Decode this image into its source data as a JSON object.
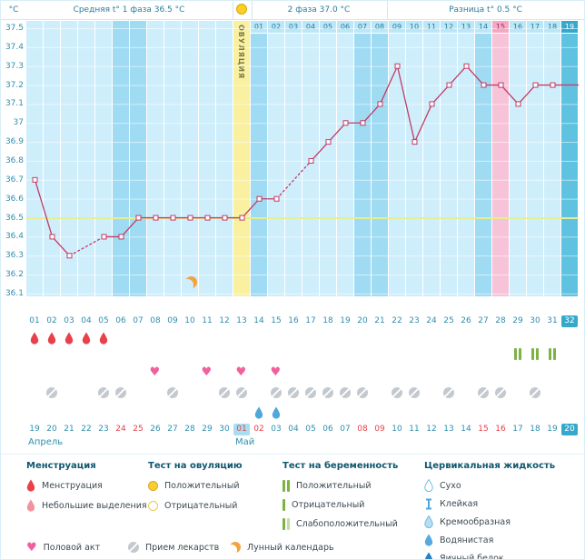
{
  "header": {
    "unit_label": "°C",
    "phase1_label": "Средняя t° 1 фаза 36.5 °C",
    "phase2_label": "2 фаза 37.0 °C",
    "diff_label": "Разница t° 0.5 °C"
  },
  "chart_data": {
    "type": "line",
    "unit": "°C",
    "ylim": [
      36.1,
      37.5
    ],
    "yticks": [
      "37.5",
      "37.4",
      "37.3",
      "37.2",
      "37.1",
      "37",
      "36.9",
      "36.8",
      "36.7",
      "36.6",
      "36.5",
      "36.4",
      "36.3",
      "36.2",
      "36.1"
    ],
    "coverline_temp": 36.5,
    "phase1_avg": 36.5,
    "phase2_avg": 37.0,
    "temp_diff": 0.5,
    "cycle_length_shown": 32,
    "temps_by_day": [
      36.7,
      36.4,
      36.3,
      null,
      36.4,
      36.4,
      36.5,
      36.5,
      36.5,
      36.5,
      36.5,
      36.5,
      36.5,
      36.6,
      36.6,
      null,
      36.8,
      36.9,
      37.0,
      37.0,
      37.1,
      37.3,
      36.9,
      37.1,
      37.2,
      37.3,
      37.2,
      37.2,
      37.1,
      37.2,
      37.2
    ],
    "ovulation": {
      "day": 13,
      "label": "ОВУЛЯЦИЯ"
    },
    "dpo": {
      "start_day": 14,
      "labels": [
        "01",
        "02",
        "03",
        "04",
        "05",
        "06",
        "07",
        "08",
        "09",
        "10",
        "11",
        "12",
        "13",
        "14",
        "15",
        "16",
        "17",
        "18",
        "19"
      ],
      "pink_label": "15",
      "today_label": "19"
    },
    "weekend_days": [
      6,
      7,
      14,
      20,
      21,
      27
    ],
    "pink_day": 28,
    "today_day": 32,
    "lunar_event_day": 10,
    "dates": [
      {
        "label": "19",
        "red": false,
        "badge": null
      },
      {
        "label": "20",
        "red": false,
        "badge": null
      },
      {
        "label": "21",
        "red": false,
        "badge": null
      },
      {
        "label": "22",
        "red": false,
        "badge": null
      },
      {
        "label": "23",
        "red": false,
        "badge": null
      },
      {
        "label": "24",
        "red": true,
        "badge": null
      },
      {
        "label": "25",
        "red": true,
        "badge": null
      },
      {
        "label": "26",
        "red": false,
        "badge": null
      },
      {
        "label": "27",
        "red": false,
        "badge": null
      },
      {
        "label": "28",
        "red": false,
        "badge": null
      },
      {
        "label": "29",
        "red": false,
        "badge": null
      },
      {
        "label": "30",
        "red": false,
        "badge": null
      },
      {
        "label": "01",
        "red": true,
        "badge": "ovu"
      },
      {
        "label": "02",
        "red": true,
        "badge": null
      },
      {
        "label": "03",
        "red": false,
        "badge": null
      },
      {
        "label": "04",
        "red": false,
        "badge": null
      },
      {
        "label": "05",
        "red": false,
        "badge": null
      },
      {
        "label": "06",
        "red": false,
        "badge": null
      },
      {
        "label": "07",
        "red": false,
        "badge": null
      },
      {
        "label": "08",
        "red": true,
        "badge": null
      },
      {
        "label": "09",
        "red": true,
        "badge": null
      },
      {
        "label": "10",
        "red": false,
        "badge": null
      },
      {
        "label": "11",
        "red": false,
        "badge": null
      },
      {
        "label": "12",
        "red": false,
        "badge": null
      },
      {
        "label": "13",
        "red": false,
        "badge": null
      },
      {
        "label": "14",
        "red": false,
        "badge": null
      },
      {
        "label": "15",
        "red": true,
        "badge": null
      },
      {
        "label": "16",
        "red": true,
        "badge": null
      },
      {
        "label": "17",
        "red": false,
        "badge": null
      },
      {
        "label": "18",
        "red": false,
        "badge": null
      },
      {
        "label": "19",
        "red": false,
        "badge": null
      },
      {
        "label": "20",
        "red": false,
        "badge": "today"
      }
    ],
    "months": [
      {
        "label": "Апрель",
        "start_day": 1
      },
      {
        "label": "Май",
        "start_day": 13
      }
    ]
  },
  "events": {
    "menstruation_days": [
      1,
      2,
      3,
      4,
      5
    ],
    "pregnancy_test_positive_days": [
      29,
      30,
      31
    ],
    "intercourse_days": [
      8,
      11,
      13,
      15
    ],
    "medication_days": [
      2,
      5,
      6,
      9,
      12,
      13,
      15,
      16,
      17,
      18,
      19,
      20,
      22,
      23,
      25,
      27,
      28,
      30
    ],
    "cervical_fluid": [
      {
        "day": 14,
        "type": "Водянистая"
      },
      {
        "day": 15,
        "type": "Водянистая"
      }
    ]
  },
  "colors": {
    "accent_teal": "#35a9cc",
    "axis_text": "#2f8fae",
    "temp_line": "#c23b64",
    "coverline": "#e6ef8f",
    "column_pale": "#cfeefc",
    "column_weekend": "#9fdbf3",
    "column_ovulation": "#f9f0a0",
    "column_pink": "#f7c3d8",
    "column_today": "#5ec2e0",
    "menstruation_red": "#e8414b",
    "spotting_red": "#f2939e",
    "heart_pink": "#f0609e",
    "test_green": "#7cb342",
    "fluid_blue": "#4fa8dc",
    "moon_orange": "#f2a33c",
    "pill_gray": "#c3c9cf"
  },
  "legend": {
    "menstruation": {
      "title": "Менструация",
      "items": [
        {
          "icon": "drop-red",
          "label": "Менструация"
        },
        {
          "icon": "drop-light",
          "label": "Небольшие выделения"
        }
      ]
    },
    "ovulation_test": {
      "title": "Тест на овуляцию",
      "items": [
        {
          "icon": "circle-filled",
          "label": "Положительный"
        },
        {
          "icon": "circle-outline",
          "label": "Отрицательный"
        }
      ]
    },
    "pregnancy_test": {
      "title": "Тест на беременность",
      "items": [
        {
          "icon": "bars-positive",
          "label": "Положительный"
        },
        {
          "icon": "bars-negative",
          "label": "Отрицательный"
        },
        {
          "icon": "bars-weak",
          "label": "Слабоположительный"
        }
      ]
    },
    "cervical": {
      "title": "Цервикальная жидкость",
      "items": [
        {
          "icon": "drop-outline",
          "label": "Сухо"
        },
        {
          "icon": "sticky",
          "label": "Клейкая"
        },
        {
          "icon": "drop-creamy",
          "label": "Кремообразная"
        },
        {
          "icon": "drop-watery",
          "label": "Водянистая"
        },
        {
          "icon": "drop-eggwhite",
          "label": "Яичный белок"
        }
      ]
    },
    "bottom": [
      {
        "icon": "heart",
        "label": "Половой акт"
      },
      {
        "icon": "pill",
        "label": "Прием лекарств"
      },
      {
        "icon": "moon",
        "label": "Лунный календарь"
      }
    ]
  }
}
